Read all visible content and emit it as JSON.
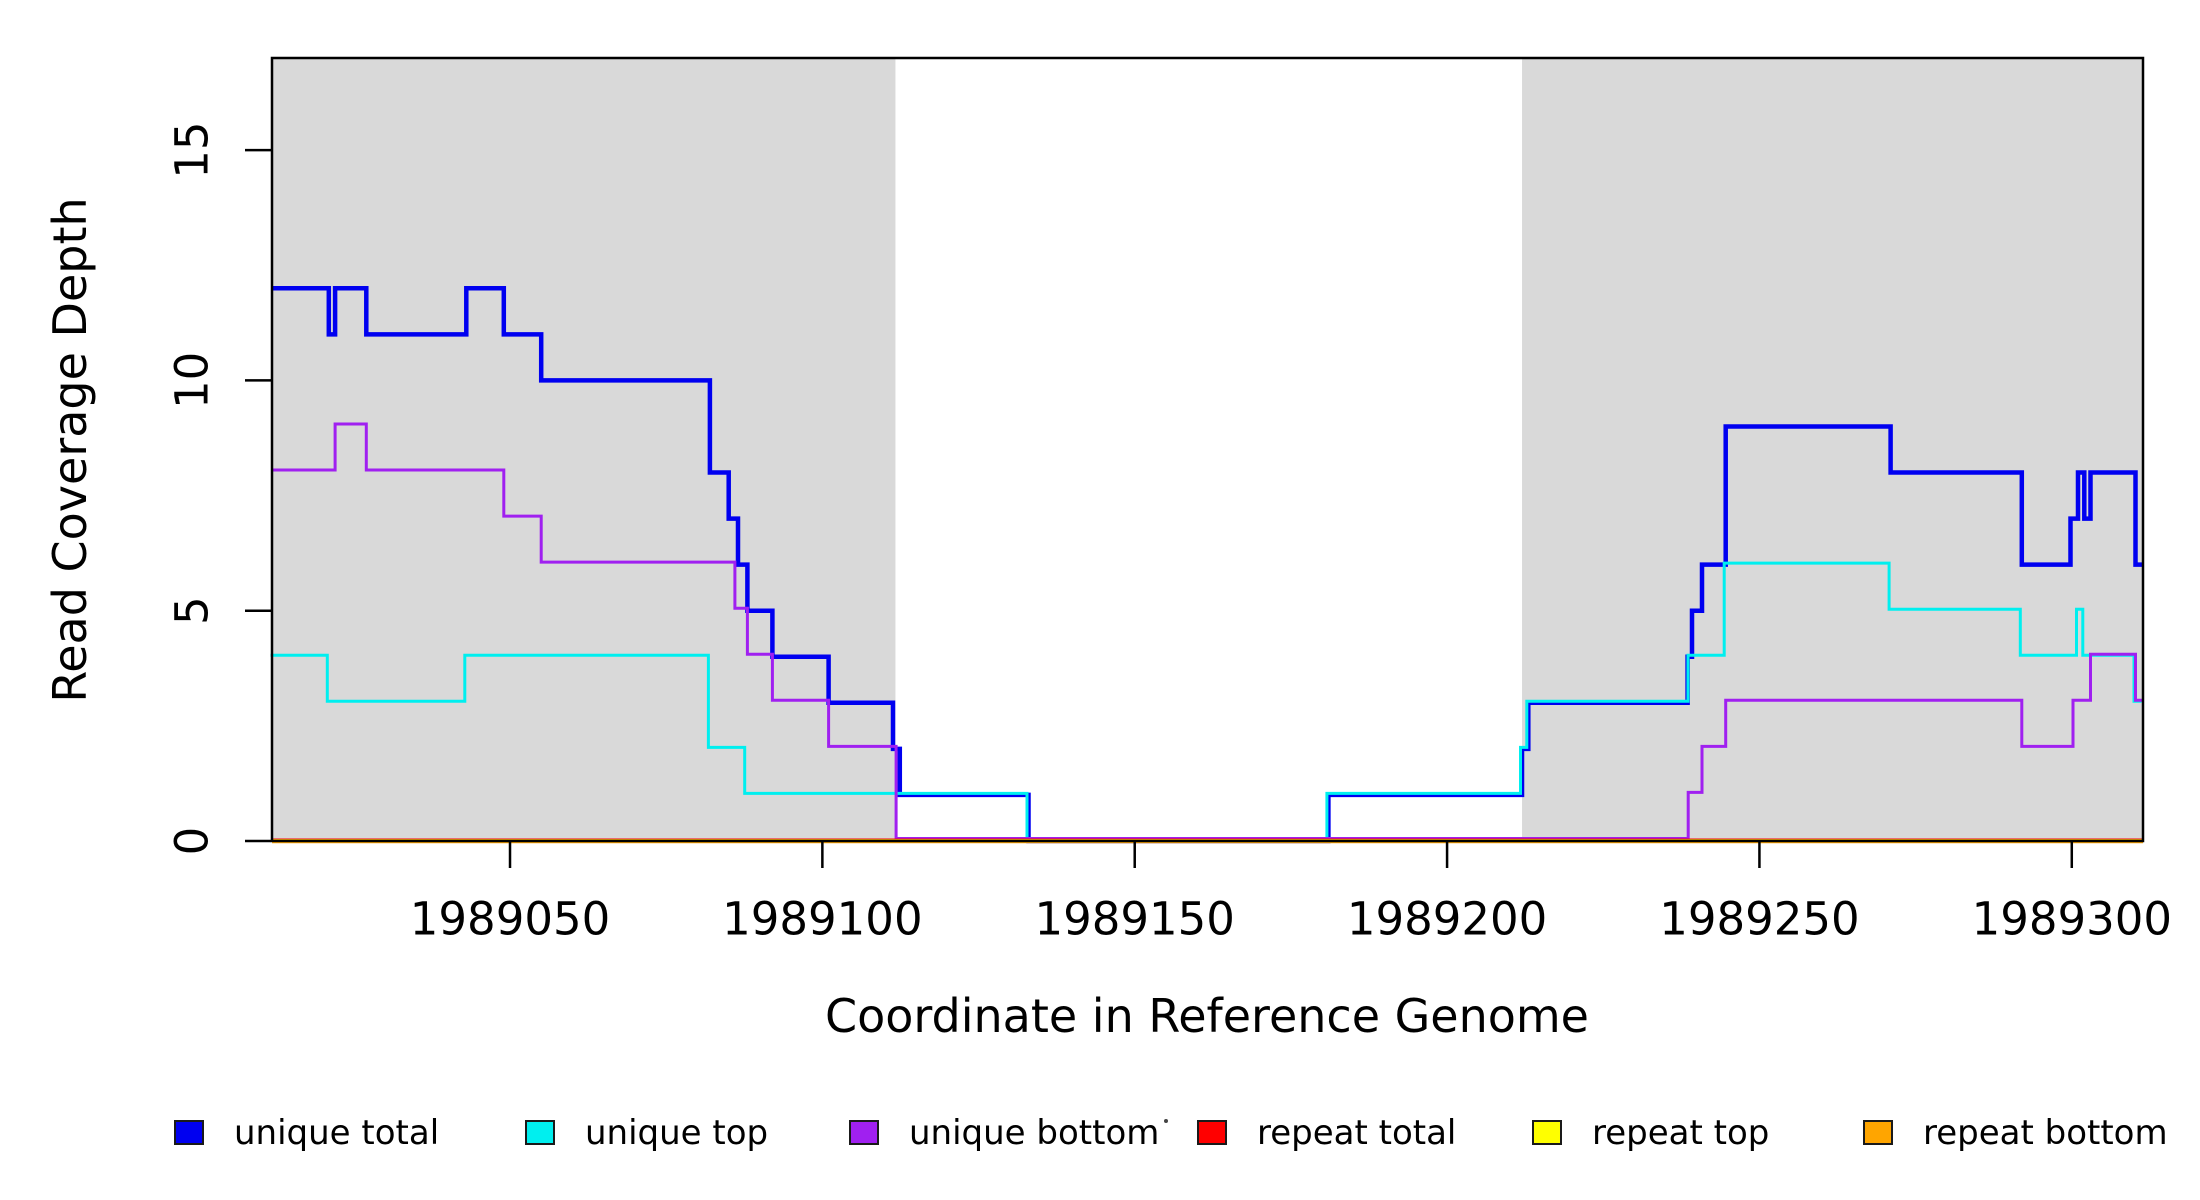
{
  "figure": {
    "background": "#ffffff",
    "panel_shade_color": "#d9d9d9",
    "box_color": "#000000",
    "text_color": "#000000"
  },
  "chart_data": {
    "type": "line",
    "subtype": "step",
    "title": "",
    "xlabel": "Coordinate in Reference Genome",
    "ylabel": "Read Coverage Depth",
    "xlim": [
      1989011.9,
      1989311.4
    ],
    "ylim": [
      0,
      17
    ],
    "grid": false,
    "legend_position": "bottom",
    "x_tick_values": [
      1989050,
      1989100,
      1989150,
      1989200,
      1989250,
      1989300
    ],
    "x_tick_labels": [
      "1989050",
      "1989100",
      "1989150",
      "1989200",
      "1989250",
      "1989300"
    ],
    "y_tick_values": [
      0,
      5,
      10,
      15
    ],
    "y_tick_labels": [
      "0",
      "5",
      "10",
      "15"
    ],
    "shaded_regions": [
      [
        1989011.9,
        1989111.7
      ],
      [
        1989212.0,
        1989311.4
      ]
    ],
    "series": [
      {
        "name": "unique total",
        "color": "#0000F0",
        "line_width": 4.5,
        "end": 1989311.4,
        "steps": [
          [
            1989011.9,
            12
          ],
          [
            1989021,
            11
          ],
          [
            1989022,
            12
          ],
          [
            1989027,
            11
          ],
          [
            1989043,
            12
          ],
          [
            1989049,
            11
          ],
          [
            1989055,
            10
          ],
          [
            1989082,
            8
          ],
          [
            1989085,
            7
          ],
          [
            1989086.5,
            6
          ],
          [
            1989088,
            5
          ],
          [
            1989092,
            4
          ],
          [
            1989101,
            3
          ],
          [
            1989111.3,
            2
          ],
          [
            1989112.4,
            1
          ],
          [
            1989133,
            0
          ],
          [
            1989181,
            1
          ],
          [
            1989212,
            2
          ],
          [
            1989213,
            3
          ],
          [
            1989238.5,
            4
          ],
          [
            1989239.2,
            5
          ],
          [
            1989240.8,
            6
          ],
          [
            1989244.6,
            9
          ],
          [
            1989271,
            8
          ],
          [
            1989292,
            6
          ],
          [
            1989299.8,
            7
          ],
          [
            1989301,
            8
          ],
          [
            1989302,
            7
          ],
          [
            1989303,
            8
          ],
          [
            1989310.2,
            6
          ]
        ]
      },
      {
        "name": "unique top",
        "color": "#00EFEF",
        "line_width": 3,
        "end": 1989311.4,
        "steps": [
          [
            1989011.9,
            4
          ],
          [
            1989021,
            3
          ],
          [
            1989043,
            4
          ],
          [
            1989082,
            2
          ],
          [
            1989087.8,
            1
          ],
          [
            1989133,
            0
          ],
          [
            1989181,
            1
          ],
          [
            1989212,
            2
          ],
          [
            1989213,
            3
          ],
          [
            1989238.8,
            4
          ],
          [
            1989244.6,
            6
          ],
          [
            1989271,
            5
          ],
          [
            1989292,
            4
          ],
          [
            1989301,
            5
          ],
          [
            1989302,
            4
          ],
          [
            1989310.2,
            3
          ]
        ]
      },
      {
        "name": "unique bottom",
        "color": "#A020F0",
        "line_width": 3,
        "end": 1989311.4,
        "steps": [
          [
            1989011.9,
            8
          ],
          [
            1989022,
            9
          ],
          [
            1989027,
            8
          ],
          [
            1989049,
            7
          ],
          [
            1989055,
            6
          ],
          [
            1989086,
            5
          ],
          [
            1989088,
            4
          ],
          [
            1989092,
            3
          ],
          [
            1989101,
            2
          ],
          [
            1989111.8,
            0
          ],
          [
            1989238.6,
            1
          ],
          [
            1989240.8,
            2
          ],
          [
            1989244.6,
            3
          ],
          [
            1989292,
            2
          ],
          [
            1989300.2,
            3
          ],
          [
            1989303,
            4
          ],
          [
            1989310.2,
            3
          ]
        ]
      },
      {
        "name": "repeat total",
        "color": "#FF0000",
        "line_width": 3,
        "end": 1989311.4,
        "steps": [
          [
            1989011.9,
            0
          ]
        ]
      },
      {
        "name": "repeat top",
        "color": "#FFFF00",
        "line_width": 3,
        "end": 1989311.4,
        "steps": [
          [
            1989011.9,
            0
          ]
        ]
      },
      {
        "name": "repeat bottom",
        "color": "#FFA500",
        "line_width": 3.2,
        "end": 1989311.4,
        "steps": [
          [
            1989011.9,
            0
          ]
        ]
      }
    ]
  }
}
